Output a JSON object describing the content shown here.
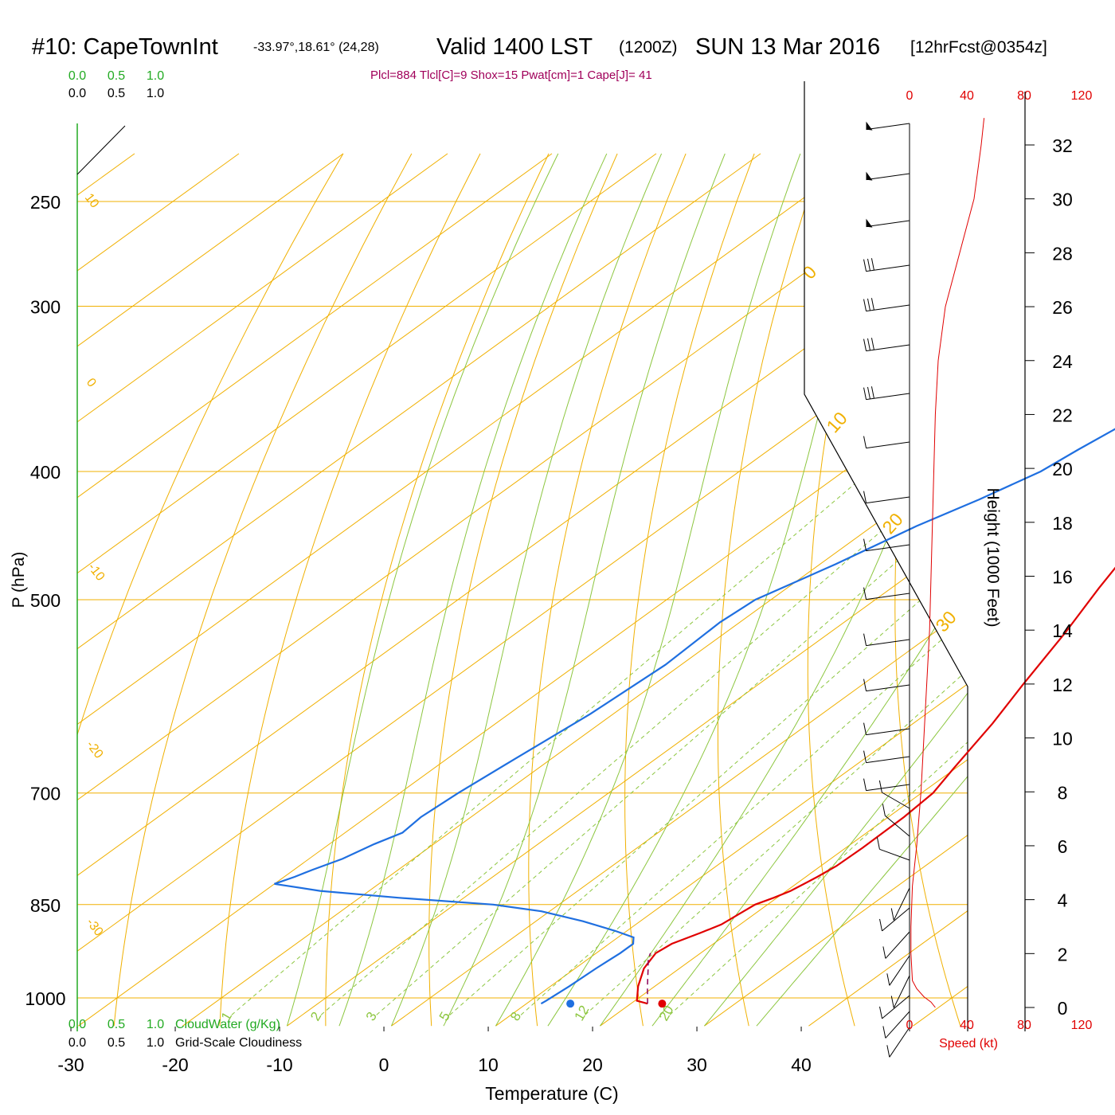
{
  "header": {
    "station": "#10: CapeTownInt",
    "coords": "-33.97°,18.61° (24,28)",
    "valid": "Valid 1400 LST",
    "utc": "(1200Z)",
    "date": "SUN 13 Mar 2016",
    "forecast": "[12hrFcst@0354z]"
  },
  "indices": "Plcl=884 Tlcl[C]=9 Shox=15 Pwat[cm]=1 Cape[J]= 41",
  "colors": {
    "temperature": "#e00000",
    "dewpoint": "#1f6fe0",
    "parcel": "#8b0057",
    "isotherm": "#f0b000",
    "dry_adiabat": "#f0b000",
    "moist_adiabat": "#8cc63f",
    "mixing_ratio": "#8cc63f",
    "cloud": "#22aa22",
    "speed": "#e00000"
  },
  "chart_data": {
    "type": "line",
    "xlabel": "Temperature (C)",
    "ylabel": "P (hPa)",
    "y2label": "Height (1000 Feet)",
    "xlim": [
      -34,
      46
    ],
    "x_ticks": [
      -30,
      -20,
      -10,
      0,
      10,
      20,
      30,
      40
    ],
    "pressure_ticks": [
      250,
      300,
      400,
      500,
      700,
      850,
      1000
    ],
    "height_ticks": [
      0,
      2,
      4,
      6,
      8,
      10,
      12,
      14,
      16,
      18,
      20,
      22,
      24,
      26,
      28,
      30,
      32
    ],
    "isotherm_labels": [
      {
        "t": 10,
        "label": "10"
      },
      {
        "t": 0,
        "label": "0"
      },
      {
        "t": -10,
        "label": "-10"
      },
      {
        "t": -20,
        "label": "-20"
      },
      {
        "t": -30,
        "label": "-30"
      }
    ],
    "isotherm_labels_right": [
      {
        "t": 0,
        "label": "0"
      },
      {
        "t": 10,
        "label": "10"
      },
      {
        "t": 20,
        "label": "20"
      },
      {
        "t": 30,
        "label": "30"
      }
    ],
    "mixing_ratio_labels": [
      "1",
      "2",
      "3",
      "5",
      "8",
      "12",
      "20"
    ],
    "series": [
      {
        "name": "Temperature",
        "points": [
          [
            21.6,
            1010
          ],
          [
            20.2,
            1005
          ],
          [
            18.4,
            980
          ],
          [
            16.6,
            950
          ],
          [
            15.7,
            925
          ],
          [
            16.0,
            910
          ],
          [
            17.3,
            893
          ],
          [
            18.2,
            880
          ],
          [
            18.6,
            860
          ],
          [
            18.8,
            850
          ],
          [
            19.7,
            840
          ],
          [
            20.4,
            830
          ],
          [
            21.1,
            810
          ],
          [
            21.5,
            795
          ],
          [
            21.6,
            770
          ],
          [
            21.5,
            730
          ],
          [
            21.1,
            700
          ],
          [
            19.8,
            670
          ],
          [
            17.6,
            620
          ],
          [
            15.4,
            580
          ],
          [
            12.6,
            530
          ],
          [
            9.9,
            490
          ],
          [
            7.9,
            460
          ],
          [
            5.5,
            430
          ],
          [
            3.5,
            400
          ],
          [
            1.6,
            375
          ],
          [
            -0.2,
            350
          ],
          [
            -1.7,
            330
          ],
          [
            -3.2,
            310
          ],
          [
            -4.2,
            300
          ],
          [
            -5.2,
            290
          ],
          [
            -6.5,
            280
          ],
          [
            -7.9,
            270
          ]
        ]
      },
      {
        "name": "Dewpoint",
        "points": [
          [
            11.4,
            1010
          ],
          [
            11.5,
            1005
          ],
          [
            11.8,
            980
          ],
          [
            12.0,
            950
          ],
          [
            12.3,
            925
          ],
          [
            12.3,
            910
          ],
          [
            11.5,
            900
          ],
          [
            8.9,
            890
          ],
          [
            4.5,
            875
          ],
          [
            -0.8,
            860
          ],
          [
            -6.3,
            850
          ],
          [
            -16.3,
            840
          ],
          [
            -24.7,
            830
          ],
          [
            -30.0,
            820
          ],
          [
            -29.0,
            810
          ],
          [
            -28.2,
            800
          ],
          [
            -26.8,
            785
          ],
          [
            -25.7,
            765
          ],
          [
            -24.5,
            750
          ],
          [
            -24.8,
            730
          ],
          [
            -24.4,
            700
          ],
          [
            -23.5,
            660
          ],
          [
            -22.2,
            610
          ],
          [
            -21.5,
            560
          ],
          [
            -21.9,
            520
          ],
          [
            -21.5,
            500
          ],
          [
            -18.5,
            470
          ],
          [
            -15.8,
            440
          ],
          [
            -13.3,
            420
          ],
          [
            -11.1,
            400
          ],
          [
            -10.4,
            385
          ],
          [
            -9.5,
            370
          ],
          [
            -9.8,
            355
          ],
          [
            -10.1,
            340
          ],
          [
            -7.3,
            325
          ],
          [
            -4.6,
            305
          ],
          [
            -5.2,
            295
          ],
          [
            -5.6,
            285
          ],
          [
            -7.6,
            270
          ]
        ]
      },
      {
        "name": "Parcel",
        "points": [
          [
            21.6,
            1010
          ],
          [
            19.3,
            980
          ],
          [
            17.0,
            950
          ],
          [
            15.8,
            935
          ],
          [
            15.2,
            925
          ]
        ]
      }
    ],
    "surface": {
      "temperature": 23,
      "dewpoint": 14.2
    },
    "wind_speed_axis": [
      0,
      40,
      80,
      120
    ],
    "wind_speed_label": "Speed (kt)",
    "wind_speed_profile": [
      [
        18,
        0.0
      ],
      [
        15,
        0.2
      ],
      [
        10,
        0.4
      ],
      [
        5,
        0.7
      ],
      [
        2,
        1.0
      ],
      [
        1,
        2.0
      ],
      [
        1,
        3.0
      ],
      [
        2,
        4.5
      ],
      [
        5,
        6.0
      ],
      [
        8,
        8.0
      ],
      [
        10,
        10.0
      ],
      [
        12,
        12.0
      ],
      [
        14,
        14.0
      ],
      [
        15,
        16.0
      ],
      [
        16,
        18.0
      ],
      [
        17,
        20.0
      ],
      [
        18,
        22.0
      ],
      [
        20,
        24.0
      ],
      [
        25,
        26.0
      ],
      [
        35,
        28.0
      ],
      [
        45,
        30.0
      ],
      [
        50,
        32.0
      ],
      [
        52,
        33.0
      ]
    ],
    "cloud_axis": [
      "0.0",
      "0.5",
      "1.0"
    ],
    "cloud_water_label": "CloudWater (g/Kg)",
    "cloudiness_label": "Grid-Scale Cloudiness"
  }
}
